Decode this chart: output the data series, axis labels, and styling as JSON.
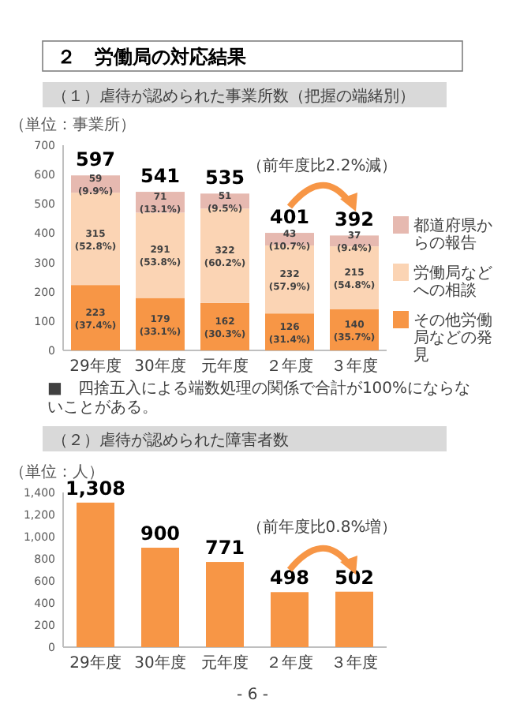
{
  "chart_data": [
    {
      "type": "bar",
      "stacked": true,
      "title": "（１）虐待が認められた事業所数（把握の端緒別）",
      "ylabel": "（単位：事業所）",
      "categories": [
        "29年度",
        "30年度",
        "元年度",
        "２年度",
        "３年度"
      ],
      "series": [
        {
          "name": "その他労働局などの発見",
          "color": "#f79646",
          "values": [
            223,
            179,
            162,
            126,
            140
          ],
          "value_labels": [
            "223 (37.4%)",
            "179 (33.1%)",
            "162 (30.3%)",
            "126 (31.4%)",
            "140 (35.7%)"
          ]
        },
        {
          "name": "労働局などへの相談",
          "color": "#fbd4b4",
          "values": [
            315,
            291,
            322,
            232,
            215
          ],
          "value_labels": [
            "315 (52.8%)",
            "291 (53.8%)",
            "322 (60.2%)",
            "232 (57.9%)",
            "215 (54.8%)"
          ]
        },
        {
          "name": "都道府県からの報告",
          "color": "#e6b9b0",
          "values": [
            59,
            71,
            51,
            43,
            37
          ],
          "value_labels": [
            "59 (9.9%)",
            "71 (13.1%)",
            "51 (9.5%)",
            "43 (10.7%)",
            "37 (9.4%)"
          ]
        }
      ],
      "totals": [
        "597",
        "541",
        "535",
        "401",
        "392"
      ],
      "ylim": [
        0,
        700
      ],
      "yticks": [
        0,
        100,
        200,
        300,
        400,
        500,
        600,
        700
      ],
      "legend": "right",
      "annotations": [
        "２　労働局の対応結果",
        "（前年度比2.2%減）",
        "■　四捨五入による端数処理の関係で合計が100%にならないことがある。"
      ]
    },
    {
      "type": "bar",
      "title": "（２）虐待が認められた障害者数",
      "ylabel": "（単位：人）",
      "categories": [
        "29年度",
        "30年度",
        "元年度",
        "２年度",
        "３年度"
      ],
      "values": [
        1308,
        900,
        771,
        498,
        502
      ],
      "color": "#f79646",
      "value_labels": [
        "1,308",
        "900",
        "771",
        "498",
        "502"
      ],
      "ylim": [
        0,
        1400
      ],
      "yticks": [
        0,
        200,
        400,
        600,
        800,
        {
          "value": 1000,
          "label": "1,000"
        },
        {
          "value": 1200,
          "label": "1,200"
        },
        {
          "value": 1400,
          "label": "1,400"
        }
      ],
      "annotations": [
        "（前年度比0.8%増）",
        "- 6 -"
      ]
    }
  ]
}
